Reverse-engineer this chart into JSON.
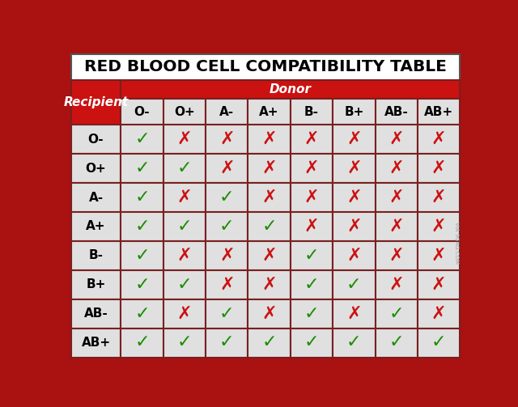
{
  "title": "RED BLOOD CELL COMPATIBILITY TABLE",
  "donor_label": "Donor",
  "recipient_label": "Recipient",
  "donors": [
    "O-",
    "O+",
    "A-",
    "A+",
    "B-",
    "B+",
    "AB-",
    "AB+"
  ],
  "recipients": [
    "O-",
    "O+",
    "A-",
    "A+",
    "B-",
    "B+",
    "AB-",
    "AB+"
  ],
  "compatibility": [
    [
      1,
      0,
      0,
      0,
      0,
      0,
      0,
      0
    ],
    [
      1,
      1,
      0,
      0,
      0,
      0,
      0,
      0
    ],
    [
      1,
      0,
      1,
      0,
      0,
      0,
      0,
      0
    ],
    [
      1,
      1,
      1,
      1,
      0,
      0,
      0,
      0
    ],
    [
      1,
      0,
      0,
      0,
      1,
      0,
      0,
      0
    ],
    [
      1,
      1,
      0,
      0,
      1,
      1,
      0,
      0
    ],
    [
      1,
      0,
      1,
      0,
      1,
      0,
      1,
      0
    ],
    [
      1,
      1,
      1,
      1,
      1,
      1,
      1,
      1
    ]
  ],
  "check_color": "#1a8c00",
  "cross_color": "#cc1111",
  "header_bg": "#cc1111",
  "header_text_color": "#ffffff",
  "title_bg": "#ffffff",
  "title_text_color": "#000000",
  "cell_bg": "#e0e0e0",
  "label_cell_bg": "#e0e0e0",
  "label_text_color": "#000000",
  "col_header_bg": "#e0e0e0",
  "col_header_text_color": "#000000",
  "border_color": "#7a2020",
  "outer_bg": "#aa1111",
  "title_border": "#888888",
  "separator_color": "#7a2020",
  "separator_thickness": 3
}
